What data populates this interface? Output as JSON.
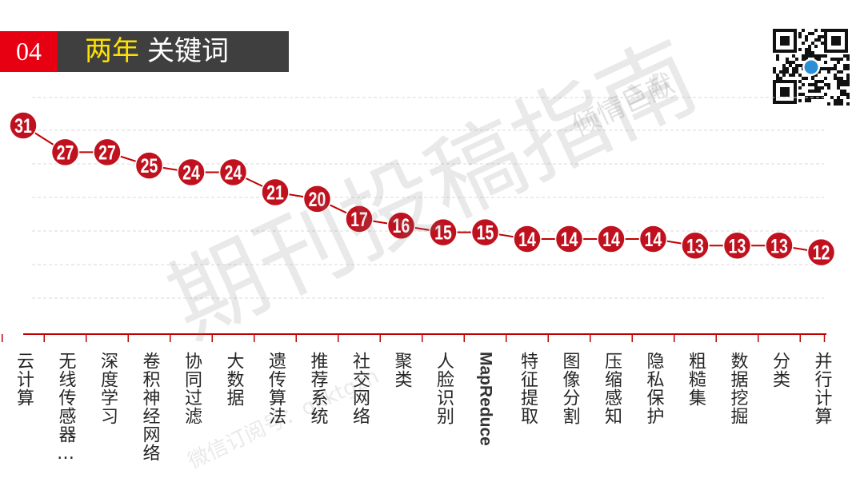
{
  "header": {
    "number": "04",
    "title_highlight": "两年",
    "title_rest": "关键词"
  },
  "watermark": {
    "main": "期刊投稿指南",
    "corner": "倾情巨献",
    "line": "微信订阅号：qkktgzn"
  },
  "colors": {
    "accent": "#c00000",
    "marker": "#c0111f",
    "header_red": "#e60012",
    "header_dark": "#3f3f3f",
    "header_yellow": "#ffe100"
  },
  "icons": {
    "qr": "qr-code-icon"
  },
  "chart_data": {
    "type": "line",
    "categories": [
      "云计算",
      "无线传感器…",
      "深度学习",
      "卷积神经网络",
      "协同过滤",
      "大数据",
      "遗传算法",
      "推荐系统",
      "社交网络",
      "聚类",
      "人脸识别",
      "MapReduce",
      "特征提取",
      "图像分割",
      "压缩感知",
      "隐私保护",
      "粗糙集",
      "数据挖掘",
      "分类",
      "并行计算"
    ],
    "values": [
      31,
      27,
      27,
      25,
      24,
      24,
      21,
      20,
      17,
      16,
      15,
      15,
      14,
      14,
      14,
      14,
      13,
      13,
      13,
      12
    ],
    "data_labels": [
      "31",
      "27",
      "27",
      "25",
      "24",
      "24",
      "21",
      "20",
      "17",
      "16",
      "15",
      "15",
      "14",
      "14",
      "14",
      "14",
      "13",
      "13",
      "13",
      "12"
    ],
    "title": "两年 关键词",
    "grid": true,
    "legend": "none"
  }
}
